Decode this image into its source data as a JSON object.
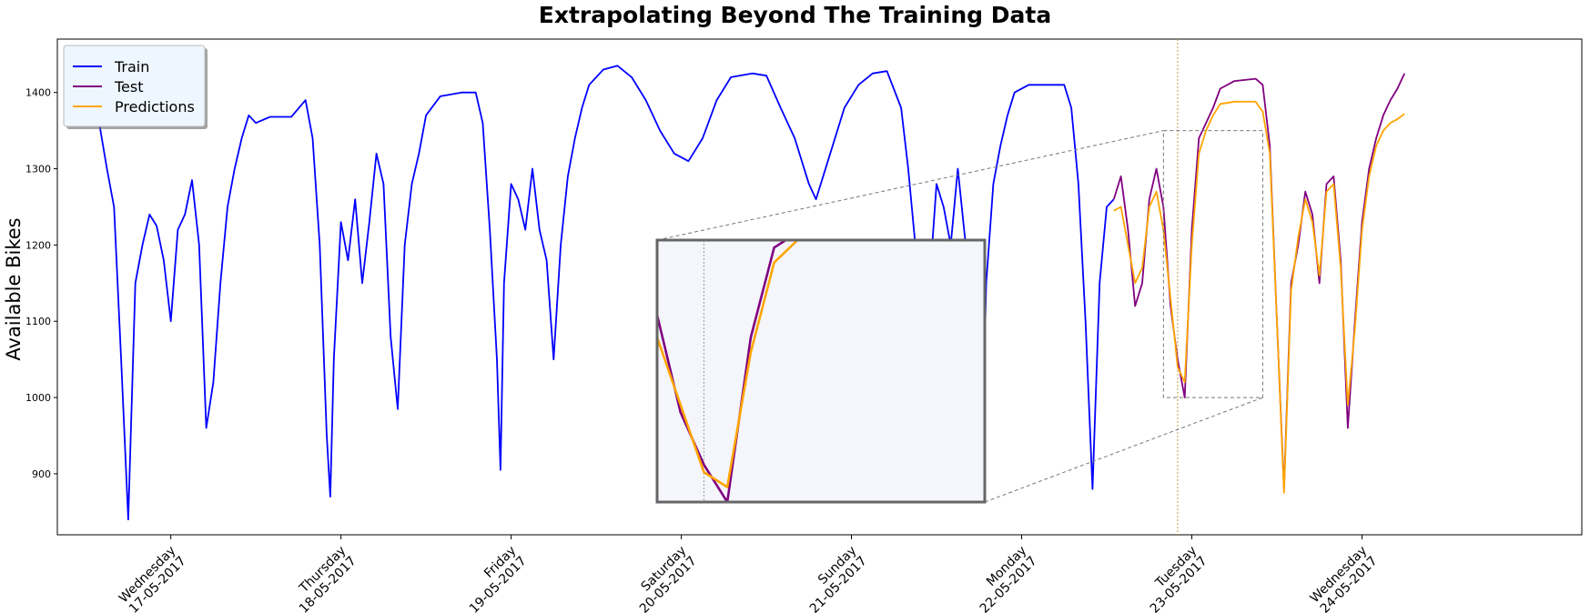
{
  "chart_data": {
    "type": "line",
    "title": "Extrapolating Beyond The Training Data",
    "xlabel": "",
    "ylabel": "Available Bikes",
    "ylim": [
      820,
      1470
    ],
    "yticks": [
      900,
      1000,
      1100,
      1200,
      1300,
      1400
    ],
    "xlim": [
      "2017-05-16 08:00",
      "2017-05-25 07:00"
    ],
    "xticks": [
      {
        "day": "Wednesday",
        "date": "17-05-2017"
      },
      {
        "day": "Thursday",
        "date": "18-05-2017"
      },
      {
        "day": "Friday",
        "date": "19-05-2017"
      },
      {
        "day": "Saturday",
        "date": "20-05-2017"
      },
      {
        "day": "Sunday",
        "date": "21-05-2017"
      },
      {
        "day": "Monday",
        "date": "22-05-2017"
      },
      {
        "day": "Tuesday",
        "date": "23-05-2017"
      },
      {
        "day": "Wednesday",
        "date": "24-05-2017"
      }
    ],
    "train_test_split": "2017-05-22 22:00",
    "legend": {
      "position": "top-left",
      "entries": [
        "Train",
        "Test",
        "Predictions"
      ]
    },
    "inset": {
      "x_range": [
        "2017-05-22 20:00",
        "2017-05-23 10:00"
      ],
      "y_range": [
        1000,
        1350
      ]
    },
    "series": [
      {
        "name": "Train",
        "color": "#0000ff",
        "points": [
          [
            "2017-05-16 14:00",
            1355
          ],
          [
            "2017-05-16 15:00",
            1300
          ],
          [
            "2017-05-16 16:00",
            1250
          ],
          [
            "2017-05-16 17:00",
            1050
          ],
          [
            "2017-05-16 18:00",
            840
          ],
          [
            "2017-05-16 19:00",
            1150
          ],
          [
            "2017-05-16 20:00",
            1200
          ],
          [
            "2017-05-16 21:00",
            1240
          ],
          [
            "2017-05-16 22:00",
            1225
          ],
          [
            "2017-05-16 23:00",
            1180
          ],
          [
            "2017-05-17 00:00",
            1100
          ],
          [
            "2017-05-17 01:00",
            1220
          ],
          [
            "2017-05-17 02:00",
            1240
          ],
          [
            "2017-05-17 03:00",
            1285
          ],
          [
            "2017-05-17 04:00",
            1200
          ],
          [
            "2017-05-17 05:00",
            960
          ],
          [
            "2017-05-17 06:00",
            1020
          ],
          [
            "2017-05-17 07:00",
            1150
          ],
          [
            "2017-05-17 08:00",
            1250
          ],
          [
            "2017-05-17 09:00",
            1300
          ],
          [
            "2017-05-17 10:00",
            1340
          ],
          [
            "2017-05-17 11:00",
            1370
          ],
          [
            "2017-05-17 12:00",
            1360
          ],
          [
            "2017-05-17 14:00",
            1368
          ],
          [
            "2017-05-17 17:00",
            1368
          ],
          [
            "2017-05-17 19:00",
            1390
          ],
          [
            "2017-05-17 20:00",
            1340
          ],
          [
            "2017-05-17 21:00",
            1200
          ],
          [
            "2017-05-17 22:00",
            950
          ],
          [
            "2017-05-17 22:30",
            870
          ],
          [
            "2017-05-17 23:00",
            1050
          ],
          [
            "2017-05-18 00:00",
            1230
          ],
          [
            "2017-05-18 01:00",
            1180
          ],
          [
            "2017-05-18 02:00",
            1260
          ],
          [
            "2017-05-18 03:00",
            1150
          ],
          [
            "2017-05-18 04:00",
            1230
          ],
          [
            "2017-05-18 05:00",
            1320
          ],
          [
            "2017-05-18 06:00",
            1280
          ],
          [
            "2017-05-18 07:00",
            1080
          ],
          [
            "2017-05-18 08:00",
            985
          ],
          [
            "2017-05-18 09:00",
            1200
          ],
          [
            "2017-05-18 10:00",
            1280
          ],
          [
            "2017-05-18 11:00",
            1320
          ],
          [
            "2017-05-18 12:00",
            1370
          ],
          [
            "2017-05-18 14:00",
            1395
          ],
          [
            "2017-05-18 17:00",
            1400
          ],
          [
            "2017-05-18 19:00",
            1400
          ],
          [
            "2017-05-18 20:00",
            1360
          ],
          [
            "2017-05-18 21:00",
            1220
          ],
          [
            "2017-05-18 22:00",
            1050
          ],
          [
            "2017-05-18 22:30",
            905
          ],
          [
            "2017-05-18 23:00",
            1150
          ],
          [
            "2017-05-19 00:00",
            1280
          ],
          [
            "2017-05-19 01:00",
            1260
          ],
          [
            "2017-05-19 02:00",
            1220
          ],
          [
            "2017-05-19 03:00",
            1300
          ],
          [
            "2017-05-19 04:00",
            1220
          ],
          [
            "2017-05-19 05:00",
            1180
          ],
          [
            "2017-05-19 06:00",
            1050
          ],
          [
            "2017-05-19 07:00",
            1200
          ],
          [
            "2017-05-19 08:00",
            1290
          ],
          [
            "2017-05-19 09:00",
            1340
          ],
          [
            "2017-05-19 10:00",
            1380
          ],
          [
            "2017-05-19 11:00",
            1410
          ],
          [
            "2017-05-19 13:00",
            1430
          ],
          [
            "2017-05-19 15:00",
            1435
          ],
          [
            "2017-05-19 17:00",
            1420
          ],
          [
            "2017-05-19 19:00",
            1390
          ],
          [
            "2017-05-19 21:00",
            1350
          ],
          [
            "2017-05-19 23:00",
            1320
          ],
          [
            "2017-05-20 01:00",
            1310
          ],
          [
            "2017-05-20 03:00",
            1340
          ],
          [
            "2017-05-20 05:00",
            1390
          ],
          [
            "2017-05-20 07:00",
            1420
          ],
          [
            "2017-05-20 10:00",
            1425
          ],
          [
            "2017-05-20 12:00",
            1422
          ],
          [
            "2017-05-20 14:00",
            1380
          ],
          [
            "2017-05-20 16:00",
            1340
          ],
          [
            "2017-05-20 18:00",
            1280
          ],
          [
            "2017-05-20 19:00",
            1260
          ],
          [
            "2017-05-20 21:00",
            1320
          ],
          [
            "2017-05-20 23:00",
            1380
          ],
          [
            "2017-05-21 01:00",
            1410
          ],
          [
            "2017-05-21 03:00",
            1425
          ],
          [
            "2017-05-21 05:00",
            1428
          ],
          [
            "2017-05-21 07:00",
            1380
          ],
          [
            "2017-05-21 08:00",
            1300
          ],
          [
            "2017-05-21 09:00",
            1200
          ],
          [
            "2017-05-21 10:00",
            1050
          ],
          [
            "2017-05-21 10:30",
            945
          ],
          [
            "2017-05-21 11:00",
            1150
          ],
          [
            "2017-05-21 12:00",
            1280
          ],
          [
            "2017-05-21 13:00",
            1250
          ],
          [
            "2017-05-21 14:00",
            1200
          ],
          [
            "2017-05-21 15:00",
            1300
          ],
          [
            "2017-05-21 16:00",
            1210
          ],
          [
            "2017-05-21 17:00",
            1170
          ],
          [
            "2017-05-21 18:00",
            1050
          ],
          [
            "2017-05-21 18:30",
            960
          ],
          [
            "2017-05-21 19:00",
            1150
          ],
          [
            "2017-05-21 20:00",
            1280
          ],
          [
            "2017-05-21 21:00",
            1330
          ],
          [
            "2017-05-21 22:00",
            1370
          ],
          [
            "2017-05-21 23:00",
            1400
          ],
          [
            "2017-05-22 01:00",
            1410
          ],
          [
            "2017-05-22 04:00",
            1410
          ],
          [
            "2017-05-22 06:00",
            1410
          ],
          [
            "2017-05-22 07:00",
            1380
          ],
          [
            "2017-05-22 08:00",
            1280
          ],
          [
            "2017-05-22 09:00",
            1100
          ],
          [
            "2017-05-22 10:00",
            880
          ],
          [
            "2017-05-22 11:00",
            1150
          ],
          [
            "2017-05-22 12:00",
            1250
          ],
          [
            "2017-05-22 13:00",
            1260
          ]
        ]
      },
      {
        "name": "Test",
        "color": "#800080",
        "points": [
          [
            "2017-05-22 13:00",
            1260
          ],
          [
            "2017-05-22 14:00",
            1290
          ],
          [
            "2017-05-22 15:00",
            1220
          ],
          [
            "2017-05-22 16:00",
            1120
          ],
          [
            "2017-05-22 17:00",
            1150
          ],
          [
            "2017-05-22 18:00",
            1260
          ],
          [
            "2017-05-22 19:00",
            1300
          ],
          [
            "2017-05-22 20:00",
            1250
          ],
          [
            "2017-05-22 21:00",
            1120
          ],
          [
            "2017-05-22 22:00",
            1050
          ],
          [
            "2017-05-22 23:00",
            1000
          ],
          [
            "2017-05-23 00:00",
            1220
          ],
          [
            "2017-05-23 01:00",
            1340
          ],
          [
            "2017-05-23 02:00",
            1360
          ],
          [
            "2017-05-23 03:00",
            1380
          ],
          [
            "2017-05-23 04:00",
            1405
          ],
          [
            "2017-05-23 06:00",
            1415
          ],
          [
            "2017-05-23 09:00",
            1418
          ],
          [
            "2017-05-23 10:00",
            1410
          ],
          [
            "2017-05-23 11:00",
            1330
          ],
          [
            "2017-05-23 12:00",
            1100
          ],
          [
            "2017-05-23 13:00",
            880
          ],
          [
            "2017-05-23 14:00",
            1150
          ],
          [
            "2017-05-23 15:00",
            1200
          ],
          [
            "2017-05-23 16:00",
            1270
          ],
          [
            "2017-05-23 17:00",
            1240
          ],
          [
            "2017-05-23 18:00",
            1150
          ],
          [
            "2017-05-23 19:00",
            1280
          ],
          [
            "2017-05-23 20:00",
            1290
          ],
          [
            "2017-05-23 21:00",
            1180
          ],
          [
            "2017-05-23 22:00",
            960
          ],
          [
            "2017-05-23 23:00",
            1100
          ],
          [
            "2017-05-24 00:00",
            1230
          ],
          [
            "2017-05-24 01:00",
            1300
          ],
          [
            "2017-05-24 02:00",
            1340
          ],
          [
            "2017-05-24 03:00",
            1370
          ],
          [
            "2017-05-24 04:00",
            1390
          ],
          [
            "2017-05-24 05:00",
            1405
          ],
          [
            "2017-05-24 06:00",
            1425
          ]
        ]
      },
      {
        "name": "Predictions",
        "color": "#ffa500",
        "points": [
          [
            "2017-05-22 13:00",
            1245
          ],
          [
            "2017-05-22 14:00",
            1250
          ],
          [
            "2017-05-22 15:00",
            1200
          ],
          [
            "2017-05-22 16:00",
            1150
          ],
          [
            "2017-05-22 17:00",
            1170
          ],
          [
            "2017-05-22 18:00",
            1250
          ],
          [
            "2017-05-22 19:00",
            1270
          ],
          [
            "2017-05-22 20:00",
            1220
          ],
          [
            "2017-05-22 21:00",
            1130
          ],
          [
            "2017-05-22 22:00",
            1040
          ],
          [
            "2017-05-22 23:00",
            1020
          ],
          [
            "2017-05-23 00:00",
            1200
          ],
          [
            "2017-05-23 01:00",
            1320
          ],
          [
            "2017-05-23 02:00",
            1350
          ],
          [
            "2017-05-23 03:00",
            1370
          ],
          [
            "2017-05-23 04:00",
            1385
          ],
          [
            "2017-05-23 06:00",
            1388
          ],
          [
            "2017-05-23 09:00",
            1388
          ],
          [
            "2017-05-23 10:00",
            1375
          ],
          [
            "2017-05-23 11:00",
            1320
          ],
          [
            "2017-05-23 12:00",
            1100
          ],
          [
            "2017-05-23 13:00",
            875
          ],
          [
            "2017-05-23 14:00",
            1140
          ],
          [
            "2017-05-23 15:00",
            1210
          ],
          [
            "2017-05-23 16:00",
            1260
          ],
          [
            "2017-05-23 17:00",
            1230
          ],
          [
            "2017-05-23 18:00",
            1160
          ],
          [
            "2017-05-23 19:00",
            1270
          ],
          [
            "2017-05-23 20:00",
            1280
          ],
          [
            "2017-05-23 21:00",
            1170
          ],
          [
            "2017-05-23 22:00",
            990
          ],
          [
            "2017-05-23 23:00",
            1090
          ],
          [
            "2017-05-24 00:00",
            1220
          ],
          [
            "2017-05-24 01:00",
            1290
          ],
          [
            "2017-05-24 02:00",
            1330
          ],
          [
            "2017-05-24 03:00",
            1350
          ],
          [
            "2017-05-24 04:00",
            1360
          ],
          [
            "2017-05-24 05:00",
            1365
          ],
          [
            "2017-05-24 06:00",
            1372
          ]
        ]
      }
    ]
  }
}
